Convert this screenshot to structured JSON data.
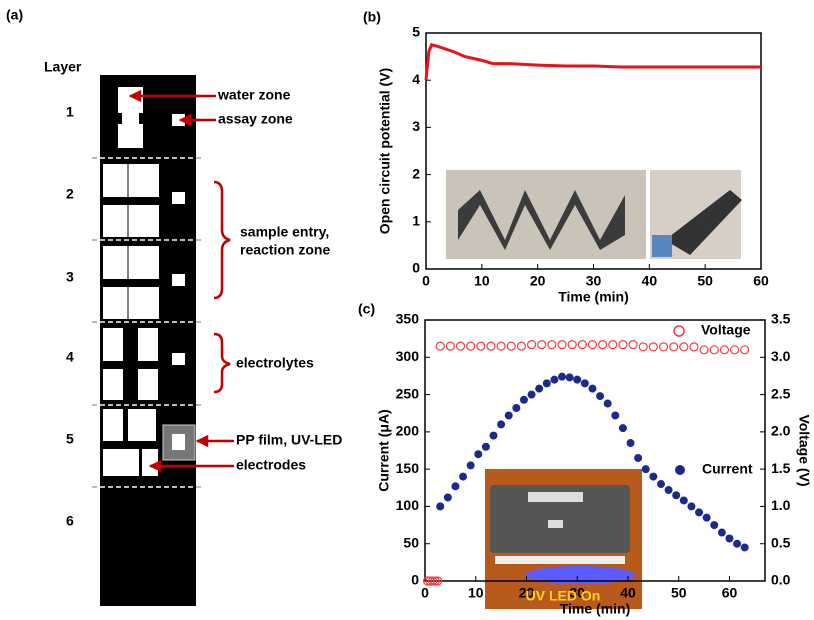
{
  "diagram": {
    "label": "(a)",
    "layer_heading": "Layer",
    "layers": [
      "1",
      "2",
      "3",
      "4",
      "5",
      "6"
    ],
    "annotations": [
      "water zone",
      "assay zone",
      "sample entry,",
      "reaction zone",
      "electrolytes",
      "PP film, UV-LED",
      "electrodes"
    ]
  },
  "chart_data": [
    {
      "type": "line",
      "panel": "(b)",
      "x_label": "Time (min)",
      "y_label": "Open circuit potential (V)",
      "xlim": [
        0,
        60
      ],
      "xticks": [
        0,
        10,
        20,
        30,
        40,
        50,
        60
      ],
      "ylim": [
        0,
        5
      ],
      "yticks": [
        0,
        1,
        2,
        3,
        4,
        5
      ],
      "series": [
        {
          "color": "#e8121a",
          "x": [
            0,
            0.5,
            1,
            2,
            3,
            5,
            7,
            10,
            12,
            15,
            20,
            25,
            30,
            35,
            40,
            45,
            50,
            55,
            60
          ],
          "values": [
            4.0,
            4.6,
            4.75,
            4.72,
            4.68,
            4.6,
            4.5,
            4.42,
            4.35,
            4.35,
            4.32,
            4.3,
            4.3,
            4.28,
            4.28,
            4.28,
            4.28,
            4.28,
            4.28
          ]
        }
      ]
    },
    {
      "type": "scatter",
      "panel": "(c)",
      "x_label": "Time (min)",
      "y_label": "Current (μA)",
      "y2_label": "Voltage (V)",
      "inset_text": "UV LED On",
      "xlim": [
        0,
        67
      ],
      "xticks": [
        0,
        10,
        20,
        30,
        40,
        50,
        60
      ],
      "ylim": [
        0,
        350
      ],
      "yticks": [
        0,
        50,
        100,
        150,
        200,
        250,
        300,
        350
      ],
      "y2lim": [
        0,
        3.5
      ],
      "y2ticks": [
        {
          "value": 0,
          "label": "0.0"
        },
        0.5,
        {
          "value": 1,
          "label": "1.0"
        },
        1.5,
        {
          "value": 2,
          "label": "2.0"
        },
        2.5,
        {
          "value": 3,
          "label": "3.0"
        },
        3.5
      ],
      "series": [
        {
          "name": "Voltage",
          "color": "#f04040",
          "axis": "y2",
          "marker": "open",
          "x": [
            0.5,
            1,
            1.5,
            2,
            2.5,
            3,
            5,
            7,
            9,
            11,
            13,
            15,
            17,
            19,
            21,
            23,
            25,
            27,
            29,
            31,
            33,
            35,
            37,
            39,
            41,
            43,
            45,
            47,
            49,
            51,
            53,
            55,
            57,
            59,
            61,
            63
          ],
          "values": [
            0,
            0,
            0,
            0,
            0,
            3.15,
            3.15,
            3.15,
            3.15,
            3.15,
            3.15,
            3.15,
            3.15,
            3.15,
            3.17,
            3.17,
            3.17,
            3.17,
            3.17,
            3.17,
            3.17,
            3.17,
            3.17,
            3.17,
            3.17,
            3.14,
            3.14,
            3.14,
            3.14,
            3.14,
            3.14,
            3.1,
            3.1,
            3.1,
            3.1,
            3.1
          ]
        },
        {
          "name": "Current",
          "color": "#1c2a8c",
          "marker": "filled",
          "x": [
            3,
            4.5,
            6,
            7.5,
            9,
            10.5,
            12,
            13.5,
            15,
            16.5,
            18,
            19.5,
            21,
            22.5,
            24,
            25.5,
            27,
            28.5,
            30,
            31.5,
            33,
            34.5,
            36,
            37.5,
            39,
            40.5,
            42,
            43.5,
            45,
            46.5,
            48,
            49.5,
            51,
            52.5,
            54,
            55.5,
            57,
            58.5,
            60,
            61.5,
            63
          ],
          "values": [
            100,
            112,
            127,
            140,
            155,
            170,
            180,
            195,
            210,
            222,
            232,
            243,
            250,
            258,
            265,
            270,
            274,
            273,
            270,
            265,
            258,
            248,
            238,
            222,
            205,
            185,
            165,
            150,
            140,
            130,
            122,
            115,
            108,
            100,
            92,
            85,
            75,
            65,
            57,
            50,
            45
          ]
        }
      ]
    }
  ]
}
